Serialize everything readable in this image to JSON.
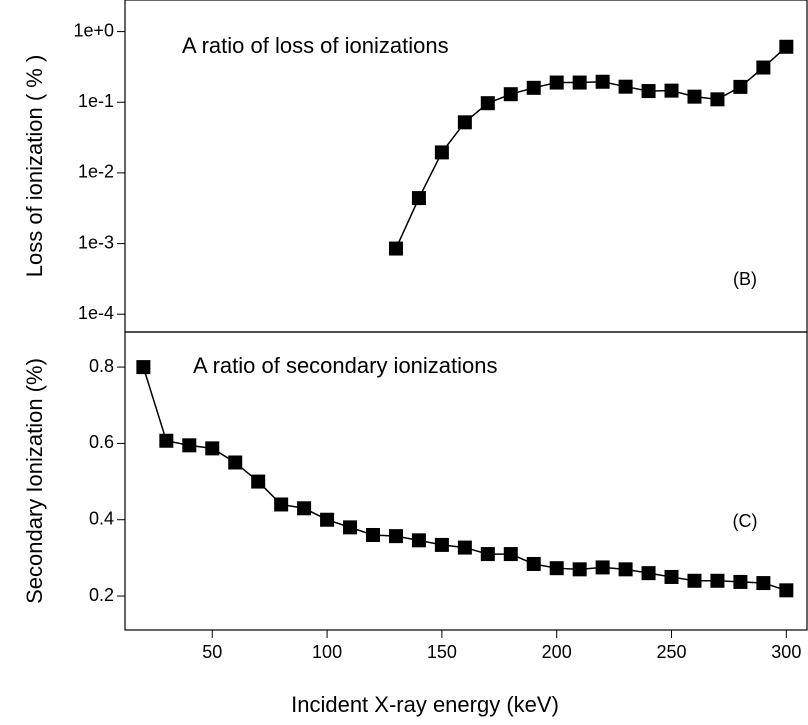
{
  "chart_data": [
    {
      "type": "line",
      "title": "A ratio of loss of ionizations",
      "annotation": "(B)",
      "y_label": "Loss of ionization ( % )",
      "log_y": true,
      "color": "#000000",
      "x": [
        130,
        140,
        150,
        160,
        170,
        180,
        190,
        200,
        210,
        220,
        230,
        240,
        250,
        260,
        270,
        280,
        290,
        300
      ],
      "values": [
        0.00085,
        0.0044,
        0.0195,
        0.052,
        0.097,
        0.13,
        0.16,
        0.19,
        0.19,
        0.195,
        0.166,
        0.144,
        0.146,
        0.12,
        0.11,
        0.165,
        0.31,
        0.61
      ],
      "xlim": [
        12,
        309
      ],
      "ylim": [
        5.6e-05,
        2.8
      ],
      "yticks": [
        {
          "value": 1,
          "label": "1e+0"
        },
        {
          "value": 0.1,
          "label": "1e-1"
        },
        {
          "value": 0.01,
          "label": "1e-2"
        },
        {
          "value": 0.001,
          "label": "1e-3"
        },
        {
          "value": 0.0001,
          "label": "1e-4"
        }
      ]
    },
    {
      "type": "line",
      "title": "A ratio of secondary ionizations",
      "annotation": "(C)",
      "y_label": "Secondary Ionization (%)",
      "x_label": "Incident  X-ray   energy (keV)",
      "log_y": false,
      "color": "#000000",
      "x": [
        20,
        30,
        40,
        50,
        60,
        70,
        80,
        90,
        100,
        110,
        120,
        130,
        140,
        150,
        160,
        170,
        180,
        190,
        200,
        210,
        220,
        230,
        240,
        250,
        260,
        270,
        280,
        290,
        300
      ],
      "values": [
        0.8,
        0.607,
        0.595,
        0.587,
        0.55,
        0.5,
        0.44,
        0.43,
        0.4,
        0.38,
        0.36,
        0.357,
        0.346,
        0.334,
        0.327,
        0.31,
        0.31,
        0.284,
        0.273,
        0.27,
        0.275,
        0.27,
        0.26,
        0.25,
        0.24,
        0.24,
        0.237,
        0.234,
        0.215
      ],
      "xlim": [
        12,
        309
      ],
      "ylim": [
        0.111,
        0.892
      ],
      "xticks": [
        50,
        100,
        150,
        200,
        250,
        300
      ],
      "yticks": [
        0.2,
        0.4,
        0.6,
        0.8
      ]
    }
  ]
}
